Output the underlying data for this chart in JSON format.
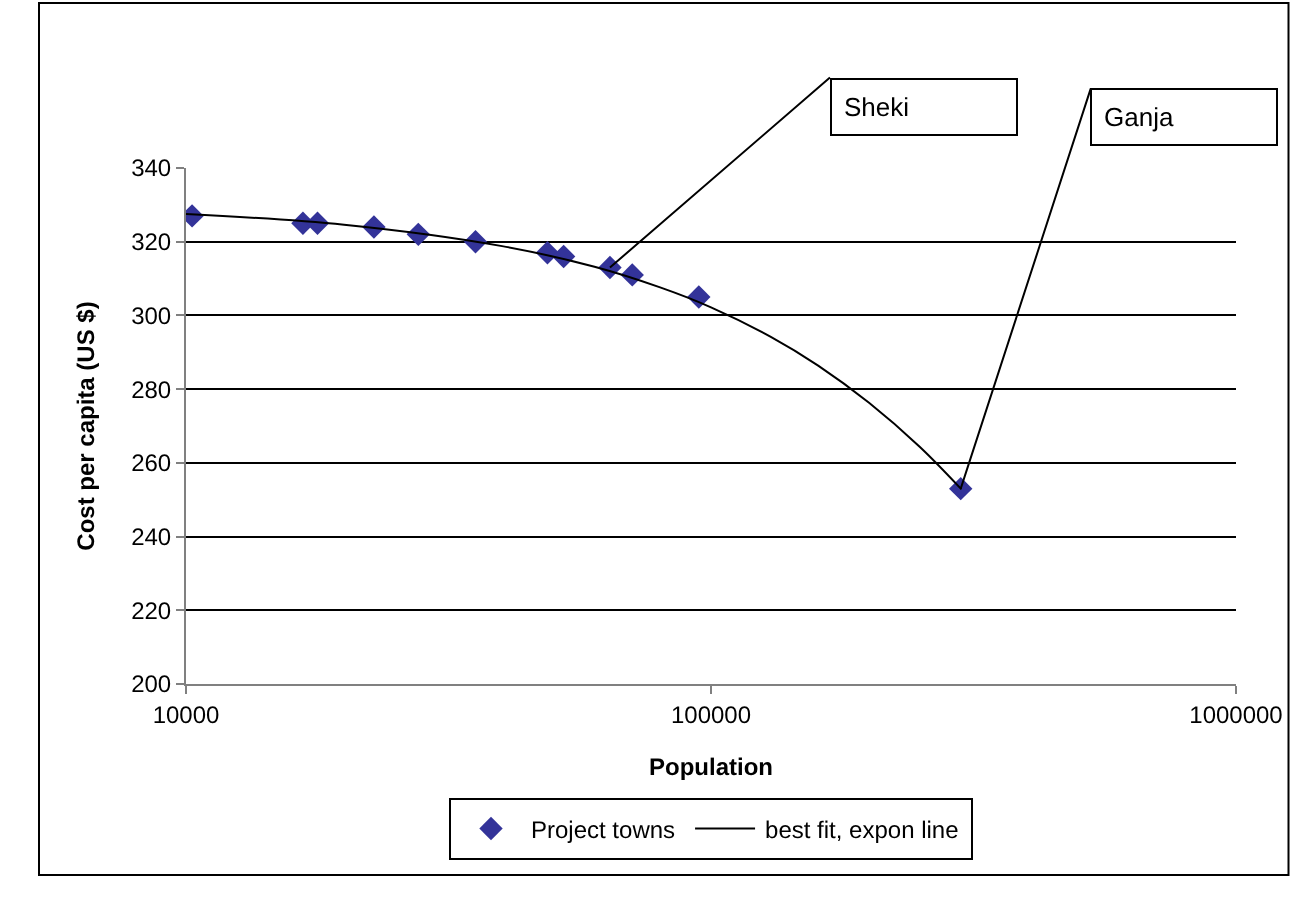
{
  "chart_data": {
    "type": "scatter",
    "xlabel": "Population",
    "ylabel": "Cost per capita (US $)",
    "log": "x",
    "grid": "y",
    "legend": "bottom",
    "xlim": [
      10000,
      1000000
    ],
    "xticks": [
      10000,
      100000,
      1000000
    ],
    "ylim": [
      200,
      340
    ],
    "yticks": [
      200,
      220,
      240,
      260,
      280,
      300,
      320,
      340
    ],
    "series": [
      {
        "name": "Project towns",
        "color": "#333399",
        "x": [
          10270,
          16700,
          17800,
          22800,
          27700,
          35000,
          35600,
          48800,
          52400,
          64200,
          70800,
          94800,
          299000
        ],
        "values": [
          327,
          325,
          325,
          324,
          322,
          null,
          320,
          317,
          316,
          313,
          311,
          305,
          253
        ],
        "marker": "diamond"
      },
      {
        "name": "best fit, expon line",
        "type": "line",
        "color": "#000000",
        "line_style": "solid",
        "x": [
          10000,
          20000,
          40000,
          60000,
          80000,
          100000,
          130000,
          160000,
          200000,
          250000,
          300000
        ],
        "values": [
          327.5,
          324.6,
          318.8,
          313.2,
          307.6,
          302.2,
          294.2,
          286.4,
          276.3,
          264.3,
          252.8
        ]
      }
    ],
    "annotations": [
      {
        "text": "Sheki",
        "x": 64200,
        "y": 313
      },
      {
        "text": "Ganja",
        "x": 299000,
        "y": 253
      }
    ]
  }
}
